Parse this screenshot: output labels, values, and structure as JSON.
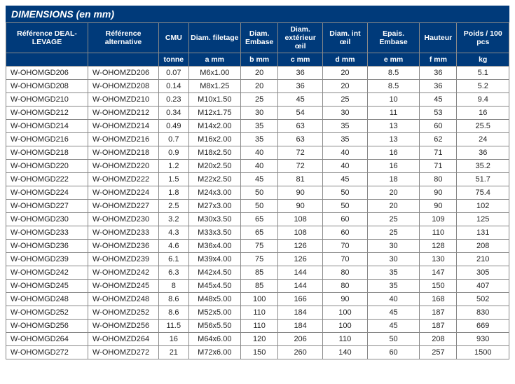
{
  "title": "DIMENSIONS (en mm)",
  "colors": {
    "header_bg": "#003a7a",
    "header_fg": "#ffffff",
    "row_bg": "#ffffff",
    "border": "#888888"
  },
  "columns": [
    {
      "main": "Référence DEAL-LEVAGE",
      "sub": ""
    },
    {
      "main": "Référence alternative",
      "sub": ""
    },
    {
      "main": "CMU",
      "sub": "tonne"
    },
    {
      "main": "Diam. filetage",
      "sub": "a mm"
    },
    {
      "main": "Diam. Embase",
      "sub": "b mm"
    },
    {
      "main": "Diam. extérieur œil",
      "sub": "c mm"
    },
    {
      "main": "Diam. int œil",
      "sub": "d mm"
    },
    {
      "main": "Epais. Embase",
      "sub": "e mm"
    },
    {
      "main": "Hauteur",
      "sub": "f mm"
    },
    {
      "main": "Poids / 100 pcs",
      "sub": "kg"
    }
  ],
  "rows": [
    [
      "W-OHOMGD206",
      "W-OHOMZD206",
      "0.07",
      "M6x1.00",
      "20",
      "36",
      "20",
      "8.5",
      "36",
      "5.1"
    ],
    [
      "W-OHOMGD208",
      "W-OHOMZD208",
      "0.14",
      "M8x1.25",
      "20",
      "36",
      "20",
      "8.5",
      "36",
      "5.2"
    ],
    [
      "W-OHOMGD210",
      "W-OHOMZD210",
      "0.23",
      "M10x1.50",
      "25",
      "45",
      "25",
      "10",
      "45",
      "9.4"
    ],
    [
      "W-OHOMGD212",
      "W-OHOMZD212",
      "0.34",
      "M12x1.75",
      "30",
      "54",
      "30",
      "11",
      "53",
      "16"
    ],
    [
      "W-OHOMGD214",
      "W-OHOMZD214",
      "0.49",
      "M14x2.00",
      "35",
      "63",
      "35",
      "13",
      "60",
      "25.5"
    ],
    [
      "W-OHOMGD216",
      "W-OHOMZD216",
      "0.7",
      "M16x2.00",
      "35",
      "63",
      "35",
      "13",
      "62",
      "24"
    ],
    [
      "W-OHOMGD218",
      "W-OHOMZD218",
      "0.9",
      "M18x2.50",
      "40",
      "72",
      "40",
      "16",
      "71",
      "36"
    ],
    [
      "W-OHOMGD220",
      "W-OHOMZD220",
      "1.2",
      "M20x2.50",
      "40",
      "72",
      "40",
      "16",
      "71",
      "35.2"
    ],
    [
      "W-OHOMGD222",
      "W-OHOMZD222",
      "1.5",
      "M22x2.50",
      "45",
      "81",
      "45",
      "18",
      "80",
      "51.7"
    ],
    [
      "W-OHOMGD224",
      "W-OHOMZD224",
      "1.8",
      "M24x3.00",
      "50",
      "90",
      "50",
      "20",
      "90",
      "75.4"
    ],
    [
      "W-OHOMGD227",
      "W-OHOMZD227",
      "2.5",
      "M27x3.00",
      "50",
      "90",
      "50",
      "20",
      "90",
      "102"
    ],
    [
      "W-OHOMGD230",
      "W-OHOMZD230",
      "3.2",
      "M30x3.50",
      "65",
      "108",
      "60",
      "25",
      "109",
      "125"
    ],
    [
      "W-OHOMGD233",
      "W-OHOMZD233",
      "4.3",
      "M33x3.50",
      "65",
      "108",
      "60",
      "25",
      "110",
      "131"
    ],
    [
      "W-OHOMGD236",
      "W-OHOMZD236",
      "4.6",
      "M36x4.00",
      "75",
      "126",
      "70",
      "30",
      "128",
      "208"
    ],
    [
      "W-OHOMGD239",
      "W-OHOMZD239",
      "6.1",
      "M39x4.00",
      "75",
      "126",
      "70",
      "30",
      "130",
      "210"
    ],
    [
      "W-OHOMGD242",
      "W-OHOMZD242",
      "6.3",
      "M42x4.50",
      "85",
      "144",
      "80",
      "35",
      "147",
      "305"
    ],
    [
      "W-OHOMGD245",
      "W-OHOMZD245",
      "8",
      "M45x4.50",
      "85",
      "144",
      "80",
      "35",
      "150",
      "407"
    ],
    [
      "W-OHOMGD248",
      "W-OHOMZD248",
      "8.6",
      "M48x5.00",
      "100",
      "166",
      "90",
      "40",
      "168",
      "502"
    ],
    [
      "W-OHOMGD252",
      "W-OHOMZD252",
      "8.6",
      "M52x5.00",
      "110",
      "184",
      "100",
      "45",
      "187",
      "830"
    ],
    [
      "W-OHOMGD256",
      "W-OHOMZD256",
      "11.5",
      "M56x5.50",
      "110",
      "184",
      "100",
      "45",
      "187",
      "669"
    ],
    [
      "W-OHOMGD264",
      "W-OHOMZD264",
      "16",
      "M64x6.00",
      "120",
      "206",
      "110",
      "50",
      "208",
      "930"
    ],
    [
      "W-OHOMGD272",
      "W-OHOMZD272",
      "21",
      "M72x6.00",
      "150",
      "260",
      "140",
      "60",
      "257",
      "1500"
    ]
  ]
}
